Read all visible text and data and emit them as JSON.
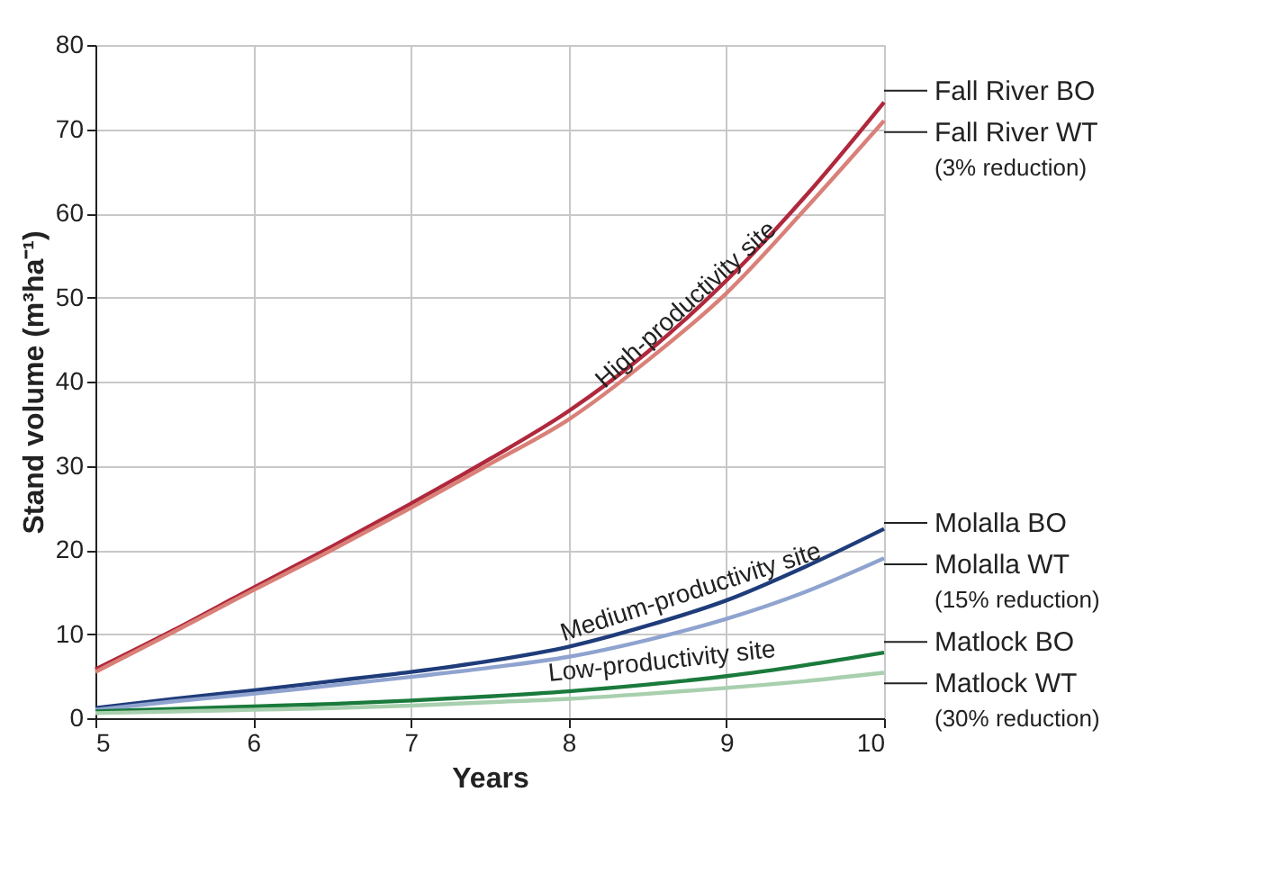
{
  "chart_data": {
    "type": "line",
    "xlabel": "Years",
    "ylabel": "Stand volume (m³ha⁻¹)",
    "x": [
      5,
      5.5,
      6,
      6.5,
      7,
      7.5,
      8,
      8.5,
      9,
      9.5,
      10
    ],
    "series": [
      {
        "name": "Fall River BO",
        "color": "#b0283c",
        "values": [
          5.8,
          10.5,
          15.5,
          20.4,
          25.5,
          30.8,
          36.5,
          43.5,
          52,
          62,
          73.2
        ]
      },
      {
        "name": "Fall River WT",
        "color": "#d98078",
        "values": [
          5.5,
          10.3,
          15.2,
          20,
          25,
          30.2,
          35.5,
          42.5,
          50.5,
          60.5,
          71
        ]
      },
      {
        "name": "Molalla BO",
        "color": "#1f3c7a",
        "values": [
          1.2,
          2.3,
          3.3,
          4.4,
          5.5,
          6.8,
          8.5,
          11,
          14,
          18,
          22.5
        ]
      },
      {
        "name": "Molalla WT",
        "color": "#8fa3cf",
        "values": [
          1.0,
          2.0,
          2.9,
          3.9,
          4.9,
          6,
          7.3,
          9.3,
          11.8,
          15,
          19
        ]
      },
      {
        "name": "Matlock BO",
        "color": "#1a7a3c",
        "values": [
          0.8,
          1.1,
          1.4,
          1.7,
          2.1,
          2.6,
          3.2,
          4,
          5,
          6.3,
          7.8
        ]
      },
      {
        "name": "Matlock WT",
        "color": "#a8cfae",
        "values": [
          0.6,
          0.8,
          1.0,
          1.2,
          1.5,
          1.9,
          2.3,
          2.9,
          3.6,
          4.4,
          5.4
        ]
      }
    ],
    "annotations": [
      {
        "text": "(3% reduction)",
        "x": 10,
        "y": 71
      },
      {
        "text": "(15% reduction)",
        "x": 10,
        "y": 19
      },
      {
        "text": "(30% reduction)",
        "x": 10,
        "y": 5.4
      },
      {
        "text": "High-productivity site",
        "x": 8.8,
        "y": 48
      },
      {
        "text": "Medium-productivity site",
        "x": 8.8,
        "y": 13.5
      },
      {
        "text": "Low-productivity site",
        "x": 8.6,
        "y": 5.2
      }
    ],
    "xlim": [
      5,
      10
    ],
    "xticks": [
      5,
      6,
      7,
      8,
      9,
      10
    ],
    "ylim": [
      0,
      80
    ],
    "yticks": [
      0,
      10,
      20,
      30,
      40,
      50,
      60,
      70,
      80
    ],
    "grid": true,
    "legend": "right",
    "line_style": "solid",
    "marker": "none"
  }
}
